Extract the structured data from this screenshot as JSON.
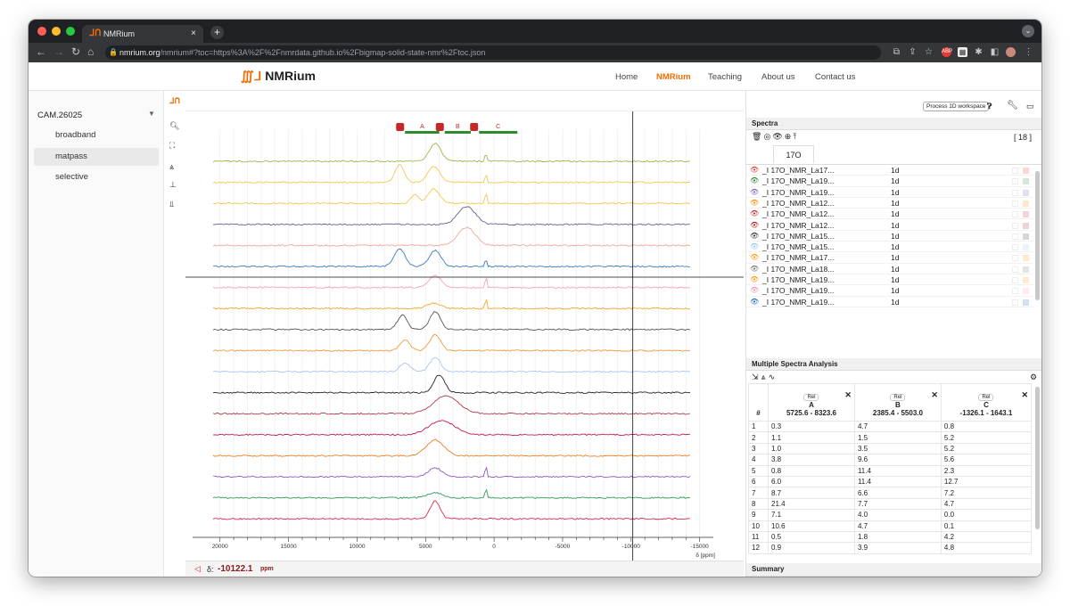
{
  "browser": {
    "tab_title": "NMRium",
    "tab_close": "×",
    "new_tab": "+",
    "url_host": "nmrium.org",
    "url_path": "/nmrium#?toc=https%3A%2F%2Fnmrdata.github.io%2Fbigmap-solid-state-nmr%2Ftoc.json"
  },
  "site": {
    "logo_text": "NMRium",
    "nav": [
      "Home",
      "NMRium",
      "Teaching",
      "About us",
      "Contact us"
    ],
    "active_nav": "NMRium"
  },
  "sidebar": {
    "header": "CAM.26025",
    "items": [
      {
        "label": "broadband"
      },
      {
        "label": "matpass",
        "selected": true
      },
      {
        "label": "selective"
      }
    ]
  },
  "toolbar": {
    "process_button": "Process 1D workspace"
  },
  "ranges": [
    {
      "label": "A"
    },
    {
      "label": "B"
    },
    {
      "label": "C"
    }
  ],
  "spectra_panel": {
    "title": "Spectra",
    "count": "[ 18 ]",
    "nucleus_tab": "17O",
    "rows": [
      {
        "name": "_I 17O_NMR_La17...",
        "dim": "1d",
        "color": "#e53935"
      },
      {
        "name": "_I 17O_NMR_La19...",
        "dim": "1d",
        "color": "#2e7d32"
      },
      {
        "name": "_I 17O_NMR_La19...",
        "dim": "1d",
        "color": "#7e57c2"
      },
      {
        "name": "_I 17O_NMR_La12...",
        "dim": "1d",
        "color": "#fb8c00"
      },
      {
        "name": "_I 17O_NMR_La12...",
        "dim": "1d",
        "color": "#c62828"
      },
      {
        "name": "_I 17O_NMR_La12...",
        "dim": "1d",
        "color": "#b71c1c"
      },
      {
        "name": "_I 17O_NMR_La15...",
        "dim": "1d",
        "color": "#263238"
      },
      {
        "name": "_I 17O_NMR_La15...",
        "dim": "1d",
        "color": "#90caf9"
      },
      {
        "name": "_I 17O_NMR_La17...",
        "dim": "1d",
        "color": "#ff9800"
      },
      {
        "name": "_I 17O_NMR_La18...",
        "dim": "1d",
        "color": "#757575"
      },
      {
        "name": "_I 17O_NMR_La19...",
        "dim": "1d",
        "color": "#ff9800"
      },
      {
        "name": "_I 17O_NMR_La19...",
        "dim": "1d",
        "color": "#f48fb1"
      },
      {
        "name": "_I 17O_NMR_La19...",
        "dim": "1d",
        "color": "#1565c0"
      }
    ]
  },
  "analysis": {
    "title": "Multiple Spectra Analysis",
    "hash": "#",
    "rel_label": "Rel",
    "columns": [
      {
        "name": "A",
        "range": "5725.6 - 8323.6"
      },
      {
        "name": "B",
        "range": "2385.4 - 5503.0"
      },
      {
        "name": "C",
        "range": "-1326.1 - 1643.1"
      }
    ],
    "rows": [
      [
        "1",
        "0.3",
        "4.7",
        "0.8"
      ],
      [
        "2",
        "1.1",
        "1.5",
        "5.2"
      ],
      [
        "3",
        "1.0",
        "3.5",
        "5.2"
      ],
      [
        "4",
        "3.8",
        "9.6",
        "5.6"
      ],
      [
        "5",
        "0.8",
        "11.4",
        "2.3"
      ],
      [
        "6",
        "6.0",
        "11.4",
        "12.7"
      ],
      [
        "7",
        "8.7",
        "6.6",
        "7.2"
      ],
      [
        "8",
        "21.4",
        "7.7",
        "4.7"
      ],
      [
        "9",
        "7.1",
        "4.0",
        "0.0"
      ],
      [
        "10",
        "10.6",
        "4.7",
        "0.1"
      ],
      [
        "11",
        "0.5",
        "1.8",
        "4.2"
      ],
      [
        "12",
        "0.9",
        "3.9",
        "4.8"
      ]
    ]
  },
  "summary": {
    "title": "Summary"
  },
  "status": {
    "prefix": "δ:",
    "value": "-10122.1",
    "unit": "ppm"
  },
  "chart_data": {
    "type": "line",
    "title": "",
    "xlabel": "δ [ppm]",
    "ylabel": "",
    "xlim": [
      22000,
      -16000
    ],
    "x_ticks": [
      "20000",
      "15000",
      "10000",
      "5000",
      "0",
      "-5000",
      "-10000",
      "-15000"
    ],
    "grid": true,
    "series": [
      {
        "color": "#9ab84a",
        "peaks": [
          [
            4300,
            1.0,
            600
          ],
          [
            600,
            0.5,
            90
          ]
        ]
      },
      {
        "color": "#f2c94c",
        "peaks": [
          [
            6900,
            1.0,
            450
          ],
          [
            4400,
            0.9,
            600
          ],
          [
            600,
            0.9,
            60
          ]
        ]
      },
      {
        "color": "#f2c94c",
        "peaks": [
          [
            5800,
            0.5,
            400
          ],
          [
            4400,
            0.8,
            600
          ],
          [
            600,
            1.1,
            60
          ]
        ]
      },
      {
        "color": "#6b5b95",
        "peaks": [
          [
            2000,
            1.0,
            900
          ]
        ]
      },
      {
        "color": "#f3a59a",
        "peaks": [
          [
            2000,
            1.0,
            900
          ]
        ]
      },
      {
        "color": "#3a7cbf",
        "peaks": [
          [
            6900,
            1.0,
            550
          ],
          [
            4300,
            0.9,
            600
          ],
          [
            600,
            0.5,
            80
          ]
        ]
      },
      {
        "color": "#f4a3b5",
        "peaks": [
          [
            4300,
            0.7,
            600
          ],
          [
            600,
            1.1,
            60
          ]
        ]
      },
      {
        "color": "#f5a623",
        "peaks": [
          [
            4400,
            0.3,
            700
          ],
          [
            600,
            1.0,
            60
          ]
        ]
      },
      {
        "color": "#555555",
        "peaks": [
          [
            6700,
            0.8,
            500
          ],
          [
            4300,
            1.0,
            550
          ]
        ]
      },
      {
        "color": "#f19a3e",
        "peaks": [
          [
            6500,
            0.6,
            500
          ],
          [
            4300,
            0.9,
            550
          ]
        ]
      },
      {
        "color": "#a9c5ef",
        "peaks": [
          [
            6500,
            0.5,
            500
          ],
          [
            4300,
            0.8,
            550
          ]
        ]
      },
      {
        "color": "#222222",
        "peaks": [
          [
            4000,
            1.0,
            550
          ]
        ]
      },
      {
        "color": "#b03a48",
        "peaks": [
          [
            3500,
            1.0,
            1300
          ]
        ]
      },
      {
        "color": "#c2185b",
        "peaks": [
          [
            3800,
            0.8,
            1300
          ]
        ]
      },
      {
        "color": "#ef7d21",
        "peaks": [
          [
            4300,
            0.9,
            900
          ]
        ]
      },
      {
        "color": "#8e5bb5",
        "peaks": [
          [
            4300,
            0.5,
            700
          ],
          [
            600,
            1.0,
            60
          ]
        ]
      },
      {
        "color": "#2e9b57",
        "peaks": [
          [
            4300,
            0.3,
            700
          ],
          [
            600,
            1.0,
            60
          ]
        ]
      },
      {
        "color": "#e0294a",
        "peaks": [
          [
            4300,
            1.0,
            500
          ]
        ]
      }
    ]
  },
  "colors": {
    "accent": "#ef6c00",
    "range_bar": "#2e8b2e",
    "range_del": "#c62828"
  }
}
